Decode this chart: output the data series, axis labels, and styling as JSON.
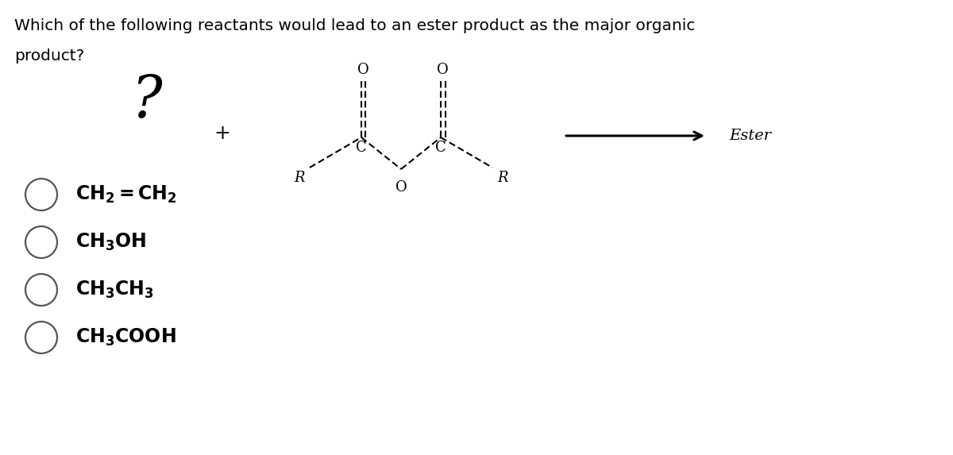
{
  "title_line1": "Which of the following reactants would lead to an ester product as the major organic",
  "title_line2": "product?",
  "question_mark": "?",
  "plus_sign": "+",
  "arrow_label": "Ester",
  "options": [
    "CH$_2$=CH$_2$",
    "CH$_3$OH",
    "CH$_3$CH$_3$",
    "CH$_3$COOH"
  ],
  "bg_color": "#ffffff",
  "text_color": "#000000",
  "title_fontsize": 14.5,
  "option_fontsize": 17,
  "question_mark_fontsize": 52,
  "plus_fontsize": 18,
  "arrow_label_fontsize": 14,
  "chem_fontsize": 13,
  "fig_width": 12.0,
  "fig_height": 5.73
}
